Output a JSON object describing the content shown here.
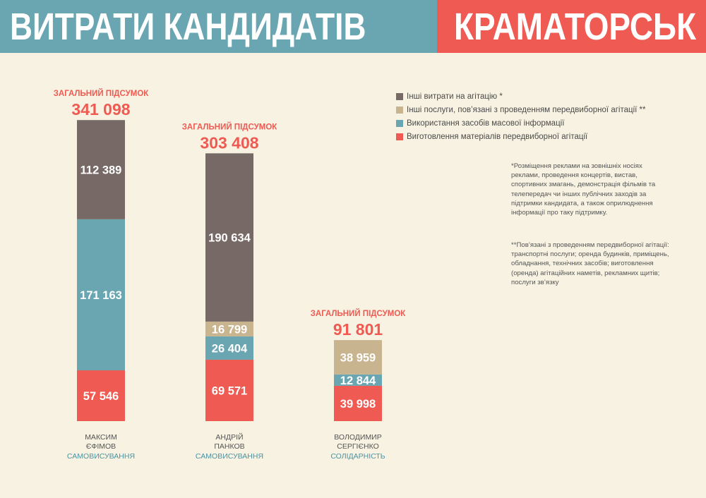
{
  "header": {
    "title": "ВИТРАТИ КАНДИДАТІВ",
    "city": "КРАМАТОРСЬК"
  },
  "colors": {
    "banner_left": "#6aa6b2",
    "banner_right": "#ef5a52",
    "background": "#f7f2e2"
  },
  "notes": {
    "note1": "*Розміщення реклами на зовнішніх носіях реклами, проведення концертів, вистав, спортивних змагань, демонстрація фільмів та телепередач чи інших публічних заходів за підтримки кандидата, а також оприлюднення інформації про таку підтримку.",
    "note2": "**Пов’язані з проведенням передвиборної агітації: транспортні послуги; оренда будинків, приміщень, обладнання, технічних засобів; виготовлення (оренда) агітаційних наметів, рекламних щитів; послуги зв’язку"
  },
  "chart_data": {
    "type": "bar",
    "stacked": true,
    "title": "ВИТРАТИ КАНДИДАТІВ",
    "subtitle": "КРАМАТОРСЬК",
    "total_label": "ЗАГАЛЬНИЙ ПІДСУМОК",
    "legend_position": "top-right",
    "grid": false,
    "categories": [
      {
        "name": "МАКСИМ\nЄФІМОВ",
        "party": "САМОВИСУВАННЯ",
        "total": "341 098"
      },
      {
        "name": "АНДРІЙ\nПАНКОВ",
        "party": "САМОВИСУВАННЯ",
        "total": "303 408"
      },
      {
        "name": "ВОЛОДИМИР\nСЕРГІЄНКО",
        "party": "СОЛІДАРНІСТЬ",
        "total": "91 801"
      }
    ],
    "series": [
      {
        "name": "Інші витрати на агітацію *",
        "color": "#776a66",
        "values": [
          112389,
          190634,
          0
        ],
        "labels": [
          "112 389",
          "190 634",
          ""
        ]
      },
      {
        "name": "Інші послуги, пов’язані з проведенням передвиборної агітації **",
        "color": "#c9b490",
        "values": [
          0,
          16799,
          38959
        ],
        "labels": [
          "",
          "16 799",
          "38 959"
        ]
      },
      {
        "name": "Використання засобів масової інформації",
        "color": "#6aa6b2",
        "values": [
          171163,
          26404,
          12844
        ],
        "labels": [
          "171 163",
          "26 404",
          "12 844"
        ]
      },
      {
        "name": "Виготовлення матеріалів передвиборної агітації",
        "color": "#ef5a52",
        "values": [
          57546,
          69571,
          39998
        ],
        "labels": [
          "57 546",
          "69 571",
          "39 998"
        ]
      }
    ]
  }
}
